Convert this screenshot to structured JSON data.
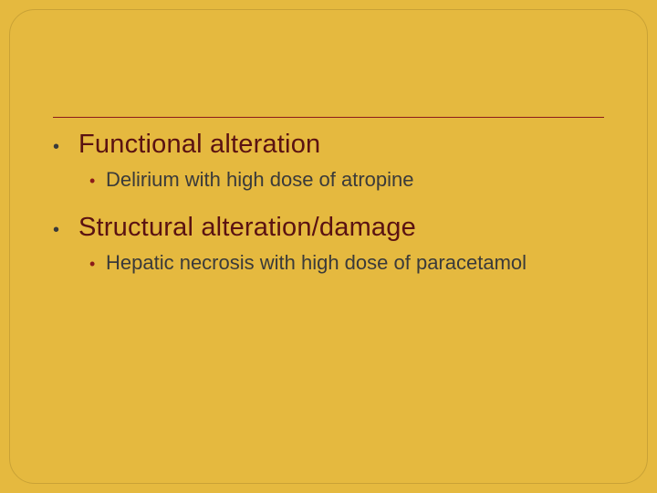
{
  "slide": {
    "background_color": "#e5b93f",
    "panel_border_color": "#c9a236",
    "panel_border_radius": 28,
    "divider_color": "#8b1a1a",
    "heading_color": "#5a1212",
    "body_color": "#3a3a3a",
    "sub_bullet_color": "#8b1a1a",
    "heading_fontsize": 29,
    "body_fontsize": 22,
    "items": [
      {
        "heading": "Functional alteration",
        "subitems": [
          "Delirium with high dose of atropine"
        ]
      },
      {
        "heading": "Structural alteration/damage",
        "subitems": [
          "Hepatic necrosis with high dose of paracetamol"
        ]
      }
    ]
  }
}
